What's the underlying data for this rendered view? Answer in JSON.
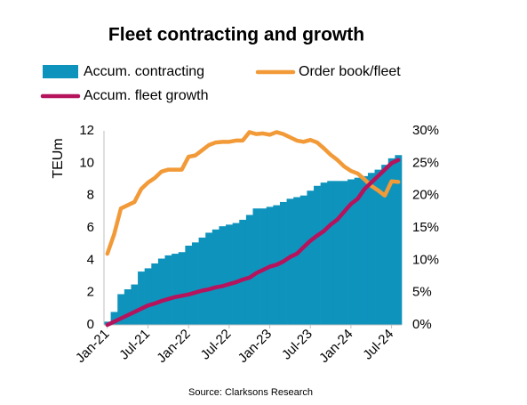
{
  "chart_data": {
    "type": "bar-line",
    "title": "Fleet contracting and growth",
    "ylabel": "TEUm",
    "source": "Source: Clarksons Research",
    "categories": [
      "Jan-21",
      null,
      null,
      null,
      null,
      null,
      "Jul-21",
      null,
      null,
      null,
      null,
      null,
      "Jan-22",
      null,
      null,
      null,
      null,
      null,
      "Jul-22",
      null,
      null,
      null,
      null,
      null,
      "Jan-23",
      null,
      null,
      null,
      null,
      null,
      "Jul-23",
      null,
      null,
      null,
      null,
      null,
      "Jan-24",
      null,
      null,
      null,
      null,
      null,
      "Jul-24",
      null
    ],
    "ylim": [
      0,
      12
    ],
    "yticks": [
      0,
      2,
      4,
      6,
      8,
      10,
      12
    ],
    "y2lim": [
      0,
      30
    ],
    "y2ticks": [
      {
        "value": 0,
        "label": "0%"
      },
      {
        "value": 5,
        "label": "5%"
      },
      {
        "value": 10,
        "label": "10%"
      },
      {
        "value": 15,
        "label": "15%"
      },
      {
        "value": 20,
        "label": "20%"
      },
      {
        "value": 25,
        "label": "25%"
      },
      {
        "value": 30,
        "label": "30%"
      }
    ],
    "grid": false,
    "series": [
      {
        "name": "Accum. contracting",
        "type": "bar",
        "color": "#0e93bd",
        "values": [
          0.2,
          0.8,
          1.9,
          2.2,
          2.5,
          3.3,
          3.5,
          3.8,
          4.1,
          4.3,
          4.4,
          4.5,
          4.9,
          5.1,
          5.4,
          5.7,
          5.9,
          6.1,
          6.2,
          6.3,
          6.5,
          6.8,
          7.2,
          7.2,
          7.3,
          7.4,
          7.6,
          7.8,
          7.9,
          8.0,
          8.3,
          8.6,
          8.8,
          8.9,
          8.9,
          8.9,
          9.0,
          9.1,
          9.2,
          9.4,
          9.6,
          9.9,
          10.3,
          10.5
        ]
      },
      {
        "name": "Order book/fleet",
        "type": "line",
        "axis": "y2",
        "color": "#f29a38",
        "values": [
          11,
          14,
          18,
          18.5,
          19,
          21,
          22,
          22.7,
          23.7,
          24,
          24,
          24,
          26,
          26.2,
          27,
          27.8,
          28.2,
          28.3,
          28.3,
          28.5,
          28.5,
          29.8,
          29.5,
          29.6,
          29.4,
          29.8,
          29.5,
          29.0,
          28.5,
          28.3,
          28.6,
          28.2,
          27.3,
          26.3,
          25.5,
          24.5,
          23.8,
          23.4,
          22.5,
          21.5,
          20.8,
          20,
          22.2,
          22.1
        ]
      },
      {
        "name": "Accum. fleet growth",
        "type": "line",
        "axis": "y2",
        "color": "#b5135c",
        "values": [
          0,
          0.5,
          1,
          1.5,
          2,
          2.5,
          3,
          3.3,
          3.7,
          4,
          4.3,
          4.5,
          4.7,
          5,
          5.3,
          5.5,
          5.8,
          6,
          6.3,
          6.6,
          7,
          7.3,
          8,
          8.5,
          9,
          9.3,
          9.8,
          10.5,
          11,
          12,
          13,
          13.8,
          14.5,
          15.5,
          16.3,
          17.5,
          18.7,
          19.5,
          21,
          22,
          23,
          24,
          25,
          25.5
        ]
      }
    ],
    "legend": "top"
  }
}
